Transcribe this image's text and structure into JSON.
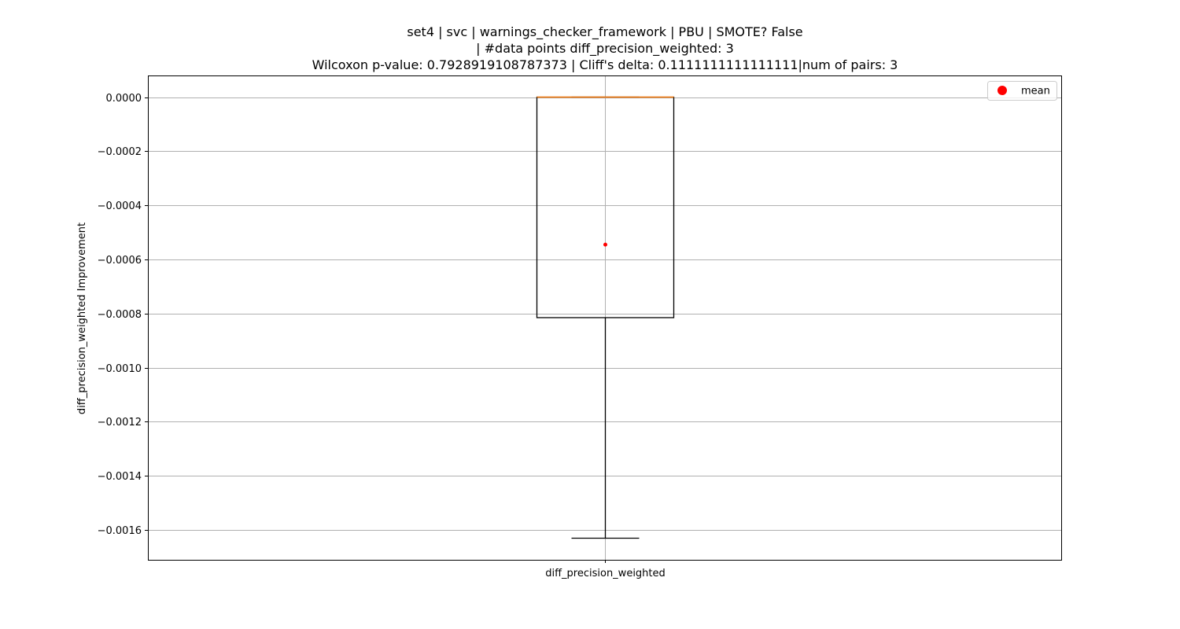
{
  "chart_data": {
    "type": "box",
    "title_lines": [
      "set4 | svc | warnings_checker_framework | PBU | SMOTE? False",
      "| #data points diff_precision_weighted: 3",
      "Wilcoxon p-value: 0.7928919108787373 | Cliff's delta: 0.1111111111111111|num of pairs: 3"
    ],
    "xlabel": "",
    "ylabel": "diff_precision_weighted Improvement",
    "categories": [
      "diff_precision_weighted"
    ],
    "ylim": [
      -0.00171,
      8e-05
    ],
    "yticks": [
      0.0,
      -0.0002,
      -0.0004,
      -0.0006,
      -0.0008,
      -0.001,
      -0.0012,
      -0.0014,
      -0.0016
    ],
    "ytick_labels": [
      "0.0000",
      "−0.0002",
      "−0.0004",
      "−0.0006",
      "−0.0008",
      "−0.0010",
      "−0.0012",
      "−0.0014",
      "−0.0016"
    ],
    "grid": true,
    "boxes": [
      {
        "category": "diff_precision_weighted",
        "whisker_low": -0.00163,
        "q1": -0.000815,
        "median": 0.0,
        "q3": 0.0,
        "whisker_high": 0.0,
        "mean": -0.000545
      }
    ],
    "legend": {
      "position": "top-right",
      "entries": [
        {
          "label": "mean",
          "marker": "circle",
          "color": "#ff0000"
        }
      ]
    },
    "colors": {
      "box": "#000000",
      "median": "#ff7f0e",
      "mean": "#ff0000",
      "grid": "#b0b0b0"
    }
  }
}
